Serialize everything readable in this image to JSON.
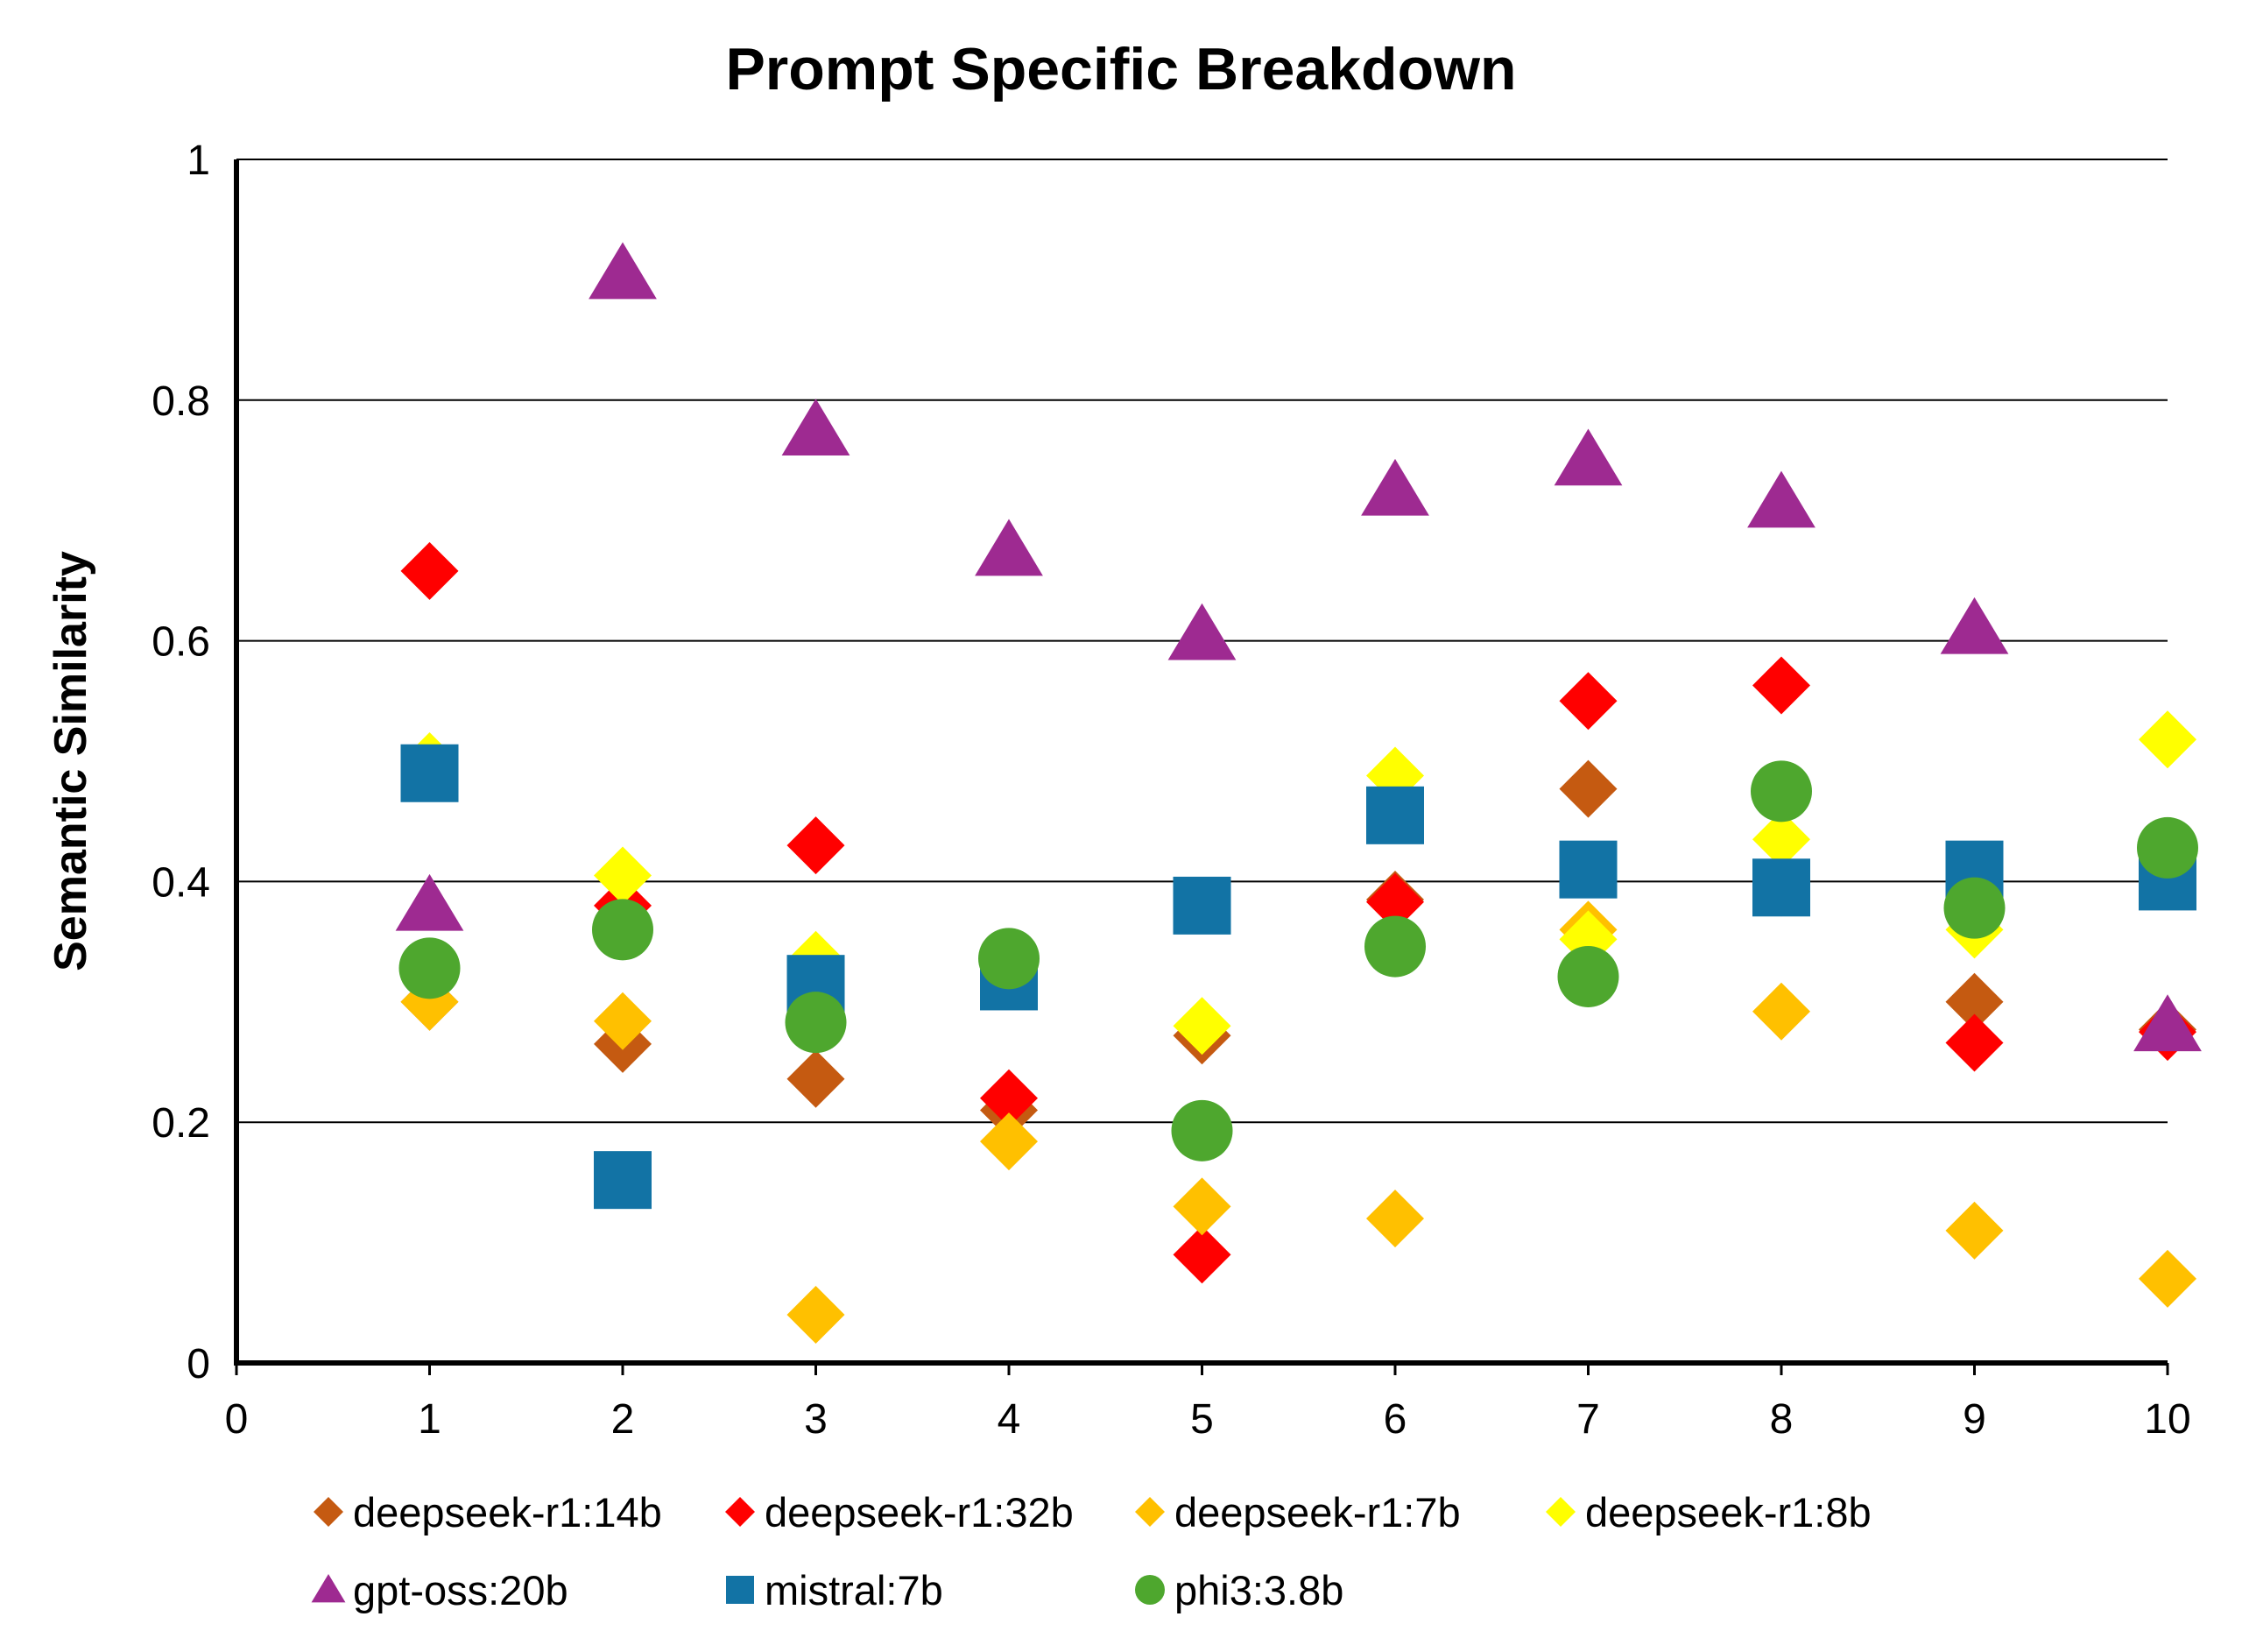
{
  "chart_data": {
    "type": "scatter",
    "title": "Prompt Specific Breakdown",
    "xlabel": "",
    "ylabel": "Semantic Similarity",
    "xlim": [
      0,
      10
    ],
    "ylim": [
      0,
      1
    ],
    "xticks": [
      "0",
      "1",
      "2",
      "3",
      "4",
      "5",
      "6",
      "7",
      "8",
      "9",
      "10"
    ],
    "yticks": [
      "0",
      "0.2",
      "0.4",
      "0.6",
      "0.8",
      "1"
    ],
    "grid": "horizontal",
    "legend_position": "bottom",
    "x": [
      1,
      2,
      3,
      4,
      5,
      6,
      7,
      8,
      9,
      10
    ],
    "series": [
      {
        "name": "deepseek-r1:14b",
        "marker": "diamond",
        "color": "#C55A11",
        "values": [
          0.3,
          0.265,
          0.236,
          0.21,
          0.272,
          0.385,
          0.477,
          0.395,
          0.3,
          0.277
        ]
      },
      {
        "name": "deepseek-r1:32b",
        "marker": "diamond",
        "color": "#FF0000",
        "values": [
          0.658,
          0.38,
          0.43,
          0.22,
          0.09,
          0.383,
          0.55,
          0.563,
          0.266,
          0.275
        ]
      },
      {
        "name": "deepseek-r1:7b",
        "marker": "diamond",
        "color": "#FFC000",
        "values": [
          0.3,
          0.284,
          0.04,
          0.184,
          0.13,
          0.12,
          0.36,
          0.292,
          0.11,
          0.07
        ]
      },
      {
        "name": "deepseek-r1:8b",
        "marker": "diamond",
        "color": "#FFFF00",
        "values": [
          0.5,
          0.405,
          0.335,
          0.33,
          0.28,
          0.488,
          0.352,
          0.435,
          0.36,
          0.518
        ]
      },
      {
        "name": "gpt-oss:20b",
        "marker": "triangle",
        "color": "#9E2A91",
        "values": [
          0.38,
          0.905,
          0.775,
          0.675,
          0.605,
          0.725,
          0.75,
          0.715,
          0.61,
          0.28
        ]
      },
      {
        "name": "mistral:7b",
        "marker": "square",
        "color": "#1273A5",
        "values": [
          0.49,
          0.152,
          0.315,
          0.317,
          0.38,
          0.455,
          0.41,
          0.395,
          0.41,
          0.4
        ]
      },
      {
        "name": "phi3:3.8b",
        "marker": "circle",
        "color": "#4EA72E",
        "values": [
          0.328,
          0.36,
          0.283,
          0.336,
          0.193,
          0.346,
          0.321,
          0.475,
          0.378,
          0.428
        ]
      }
    ]
  }
}
